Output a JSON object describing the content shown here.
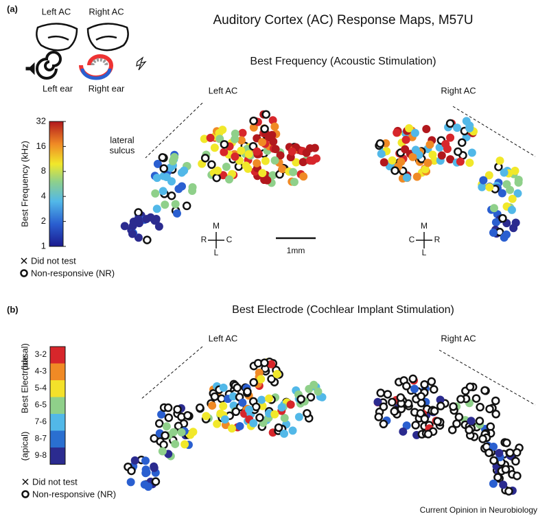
{
  "panel_a": {
    "label": "(a)",
    "title": "Auditory Cortex (AC) Response Maps, M57U",
    "schematic": {
      "left_ac": "Left AC",
      "right_ac": "Right AC",
      "left_ear": "Left ear",
      "right_ear": "Right ear"
    },
    "subtitle": "Best Frequency (Acoustic Stimulation)",
    "maps": {
      "left": "Left AC",
      "right": "Right AC"
    },
    "sulcus": [
      "lateral",
      "sulcus"
    ],
    "colorbar": {
      "label": "Best Frequency (kHz)",
      "ticks": [
        "32",
        "16",
        "8",
        "4",
        "2",
        "1"
      ]
    },
    "legend": [
      "Did not test",
      "Non-responsive (NR)"
    ],
    "orientation_left": {
      "m": "M",
      "r": "R",
      "c": "C",
      "l": "L"
    },
    "orientation_right": {
      "m": "M",
      "c": "C",
      "r": "R",
      "l": "L"
    },
    "scale": "1mm"
  },
  "panel_b": {
    "label": "(b)",
    "subtitle": "Best Electrode (Cochlear Implant Stimulation)",
    "maps": {
      "left": "Left AC",
      "right": "Right AC"
    },
    "colorbar": {
      "label": "Best Electrode",
      "top": "(basal)",
      "bottom": "(apical)",
      "ticks": [
        "3-2",
        "4-3",
        "5-4",
        "6-5",
        "7-6",
        "8-7",
        "9-8"
      ]
    },
    "legend": [
      "Did not test",
      "Non-responsive (NR)"
    ]
  },
  "footer": "Current Opinion in Neurobiology"
}
